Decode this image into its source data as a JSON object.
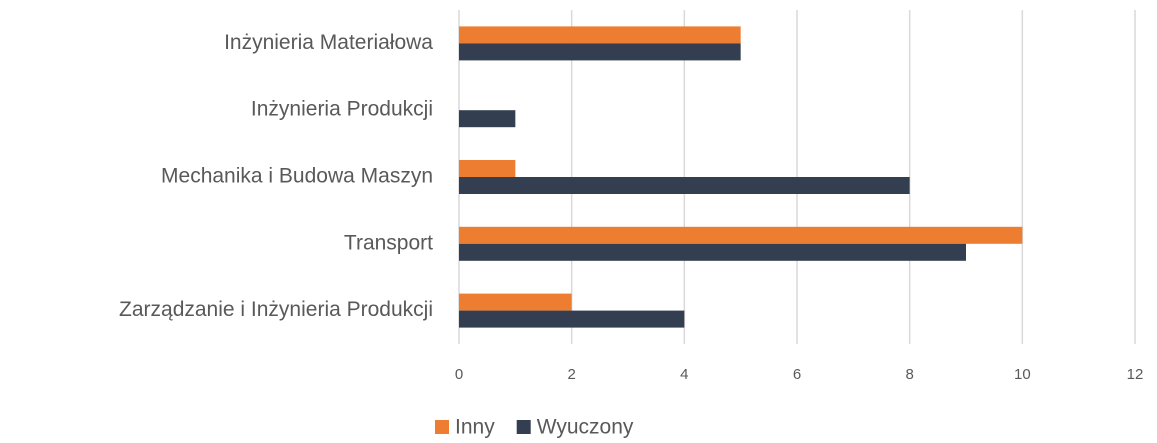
{
  "chart_data": {
    "type": "bar",
    "orientation": "horizontal",
    "categories": [
      "Inżynieria Materiałowa",
      "Inżynieria Produkcji",
      "Mechanika i Budowa Maszyn",
      "Transport",
      "Zarządzanie i Inżynieria Produkcji"
    ],
    "series": [
      {
        "name": "Inny",
        "color": "#ed7d31",
        "values": [
          5,
          0,
          1,
          10,
          2
        ]
      },
      {
        "name": "Wyuczony",
        "color": "#333f50",
        "values": [
          5,
          1,
          8,
          9,
          4
        ]
      }
    ],
    "xlim": [
      0,
      12
    ],
    "xticks": [
      0,
      2,
      4,
      6,
      8,
      10,
      12
    ],
    "grid": true,
    "legend": "bottom"
  }
}
